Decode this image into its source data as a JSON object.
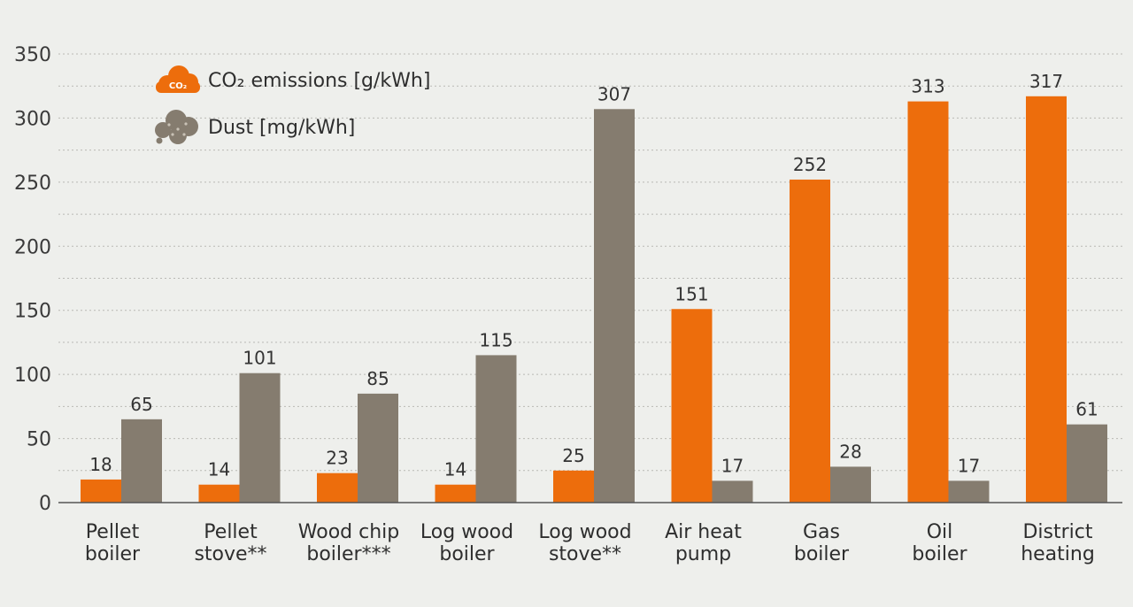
{
  "chart_data": {
    "type": "bar",
    "categories": [
      [
        "Pellet",
        "boiler"
      ],
      [
        "Pellet",
        "stove**"
      ],
      [
        "Wood chip",
        "boiler***"
      ],
      [
        "Log wood",
        "boiler"
      ],
      [
        "Log wood",
        "stove**"
      ],
      [
        "Air heat",
        "pump"
      ],
      [
        "Gas",
        "boiler"
      ],
      [
        "Oil",
        "boiler"
      ],
      [
        "District",
        "heating"
      ]
    ],
    "series": [
      {
        "name": "CO₂ emissions [g/kWh]",
        "color": "#ed6d0c",
        "icon": "co2-cloud-icon",
        "icon_label": "CO₂",
        "values": [
          18,
          14,
          23,
          14,
          25,
          151,
          252,
          313,
          317
        ]
      },
      {
        "name": "Dust [mg/kWh]",
        "color": "#857c6f",
        "icon": "dust-cloud-icon",
        "values": [
          65,
          101,
          85,
          115,
          307,
          17,
          28,
          17,
          61
        ]
      }
    ],
    "ylim": [
      0,
      350
    ],
    "yticks": [
      0,
      50,
      100,
      150,
      200,
      250,
      300,
      350
    ],
    "grid": "dotted horizontal",
    "legend_position": "top-left"
  }
}
